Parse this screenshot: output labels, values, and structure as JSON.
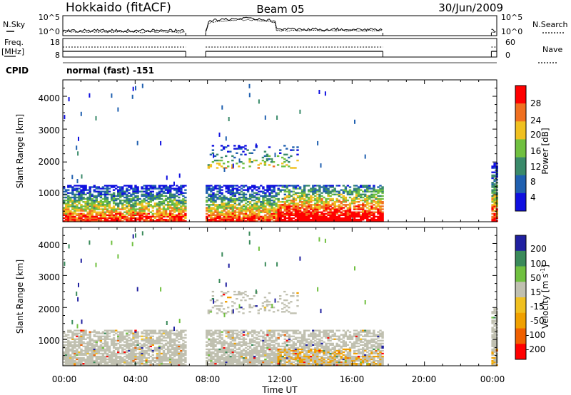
{
  "header": {
    "site": "Hokkaido (fitACF)",
    "beam": "Beam 05",
    "date": "30/Jun/2009"
  },
  "top_panel": {
    "left_label": "N.Sky",
    "right_label": "N.Search",
    "left_ticks": [
      "10^5",
      "10^0"
    ],
    "right_ticks": [
      "10^5",
      "10^0"
    ]
  },
  "freq_panel": {
    "left_label_line1": "Freq.",
    "left_label_line2": "[MHz]",
    "right_label": "Nave",
    "left_ticks": [
      "18",
      "8"
    ],
    "right_ticks": [
      "60",
      "0"
    ]
  },
  "cpid": {
    "label": "CPID",
    "value": "normal (fast) -151"
  },
  "power_panel": {
    "ylabel": "Slant Range [km]",
    "yticks": [
      "1000",
      "2000",
      "3000",
      "4000"
    ],
    "colorbar_label": "Power [dB]",
    "colorbar_ticks": [
      "4",
      "8",
      "12",
      "16",
      "20",
      "24",
      "28"
    ]
  },
  "velocity_panel": {
    "ylabel": "Slant Range [km]",
    "yticks": [
      "1000",
      "2000",
      "3000",
      "4000"
    ],
    "colorbar_label": "Velocity [m s",
    "colorbar_label_sup": "-1",
    "colorbar_label_end": "]",
    "colorbar_ticks": [
      "200",
      "100",
      "50",
      "15",
      "-15",
      "-50",
      "-100",
      "-200"
    ]
  },
  "x_axis": {
    "label": "Time UT",
    "ticks": [
      "00:00",
      "04:00",
      "08:00",
      "12:00",
      "16:00",
      "20:00",
      "00:00"
    ]
  },
  "chart_data": [
    {
      "type": "heatmap",
      "title": "Hokkaido (fitACF) Beam 05 30/Jun/2009",
      "quantity": "Power",
      "xlabel": "Time UT",
      "ylabel": "Slant Range [km]",
      "colorbar": "Power [dB]",
      "xlim": [
        0,
        24
      ],
      "ylim": [
        180,
        4500
      ],
      "color_scale": [
        {
          "value": 4,
          "color": "#1010e0"
        },
        {
          "value": 8,
          "color": "#2060b0"
        },
        {
          "value": 12,
          "color": "#3a8a6a"
        },
        {
          "value": 16,
          "color": "#70c040"
        },
        {
          "value": 20,
          "color": "#f0c020"
        },
        {
          "value": 24,
          "color": "#f07020"
        },
        {
          "value": 28,
          "color": "#ff0000"
        }
      ],
      "data_gaps_ut": [
        [
          6.8,
          7.9
        ],
        [
          17.7,
          23.7
        ]
      ],
      "echo_regions": [
        {
          "t_start": 0.0,
          "t_end": 6.8,
          "range_min": 180,
          "range_max": 1300,
          "power_db_range": [
            4,
            28
          ]
        },
        {
          "t_start": 7.9,
          "t_end": 17.7,
          "range_min": 180,
          "range_max": 1300,
          "power_db_range": [
            4,
            28
          ]
        },
        {
          "t_start": 8.0,
          "t_end": 13.0,
          "range_min": 1800,
          "range_max": 2500,
          "power_db_range": [
            4,
            20
          ]
        },
        {
          "t_start": 23.7,
          "t_end": 24.0,
          "range_min": 180,
          "range_max": 2000,
          "power_db_range": [
            4,
            28
          ]
        }
      ]
    },
    {
      "type": "heatmap",
      "quantity": "Velocity",
      "xlabel": "Time UT",
      "ylabel": "Slant Range [km]",
      "colorbar": "Velocity [m s-1]",
      "xlim": [
        0,
        24
      ],
      "ylim": [
        180,
        4500
      ],
      "color_scale": [
        {
          "value": 200,
          "color": "#2020a0"
        },
        {
          "value": 100,
          "color": "#3a8a5a"
        },
        {
          "value": 50,
          "color": "#70c040"
        },
        {
          "value": 15,
          "color": "#c0c0b0"
        },
        {
          "value": -15,
          "color": "#f0c020"
        },
        {
          "value": -50,
          "color": "#f0a000"
        },
        {
          "value": -100,
          "color": "#f06000"
        },
        {
          "value": -200,
          "color": "#ff0000"
        }
      ],
      "data_gaps_ut": [
        [
          6.8,
          7.9
        ],
        [
          17.7,
          23.7
        ]
      ],
      "echo_regions": [
        {
          "t_start": 0.0,
          "t_end": 6.8,
          "range_min": 180,
          "range_max": 1300,
          "dominant_velocity": "-15 to 15"
        },
        {
          "t_start": 7.9,
          "t_end": 17.7,
          "range_min": 180,
          "range_max": 1300,
          "dominant_velocity": "-15 to 15"
        },
        {
          "t_start": 8.0,
          "t_end": 13.0,
          "range_min": 1800,
          "range_max": 2500,
          "dominant_velocity": "-15 to 15"
        }
      ]
    }
  ]
}
